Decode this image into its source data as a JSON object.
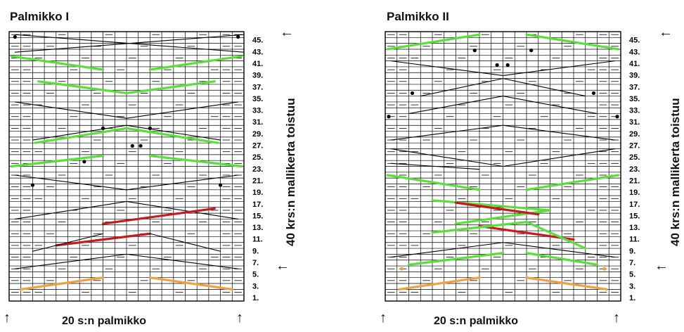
{
  "charts": [
    {
      "title": "Palmikko I",
      "bottom_label": "20 s:n palmikko",
      "side_label": "40 krs:n mallikerta toistuu",
      "row_labels": [
        "45.",
        "43.",
        "41.",
        "39.",
        "37.",
        "35.",
        "33.",
        "31.",
        "29.",
        "27.",
        "25.",
        "23.",
        "21.",
        "19.",
        "17.",
        "15.",
        "13.",
        "11.",
        "9.",
        "7.",
        "5.",
        "3.",
        "1."
      ]
    },
    {
      "title": "Palmikko II",
      "bottom_label": "20 s:n palmikko",
      "side_label": "40 krs:n mallikerta toistuu",
      "row_labels": [
        "45.",
        "43.",
        "41.",
        "39.",
        "37.",
        "35.",
        "33.",
        "31.",
        "29.",
        "27.",
        "25.",
        "23.",
        "21.",
        "19.",
        "17.",
        "15.",
        "13.",
        "11.",
        "9.",
        "7.",
        "5.",
        "3.",
        "1."
      ]
    }
  ],
  "arrows": {
    "left": "←",
    "up": "↑"
  },
  "colors": {
    "green": "#57e03a",
    "red": "#c8191e",
    "orange": "#f0a040",
    "grid": "#000000"
  }
}
